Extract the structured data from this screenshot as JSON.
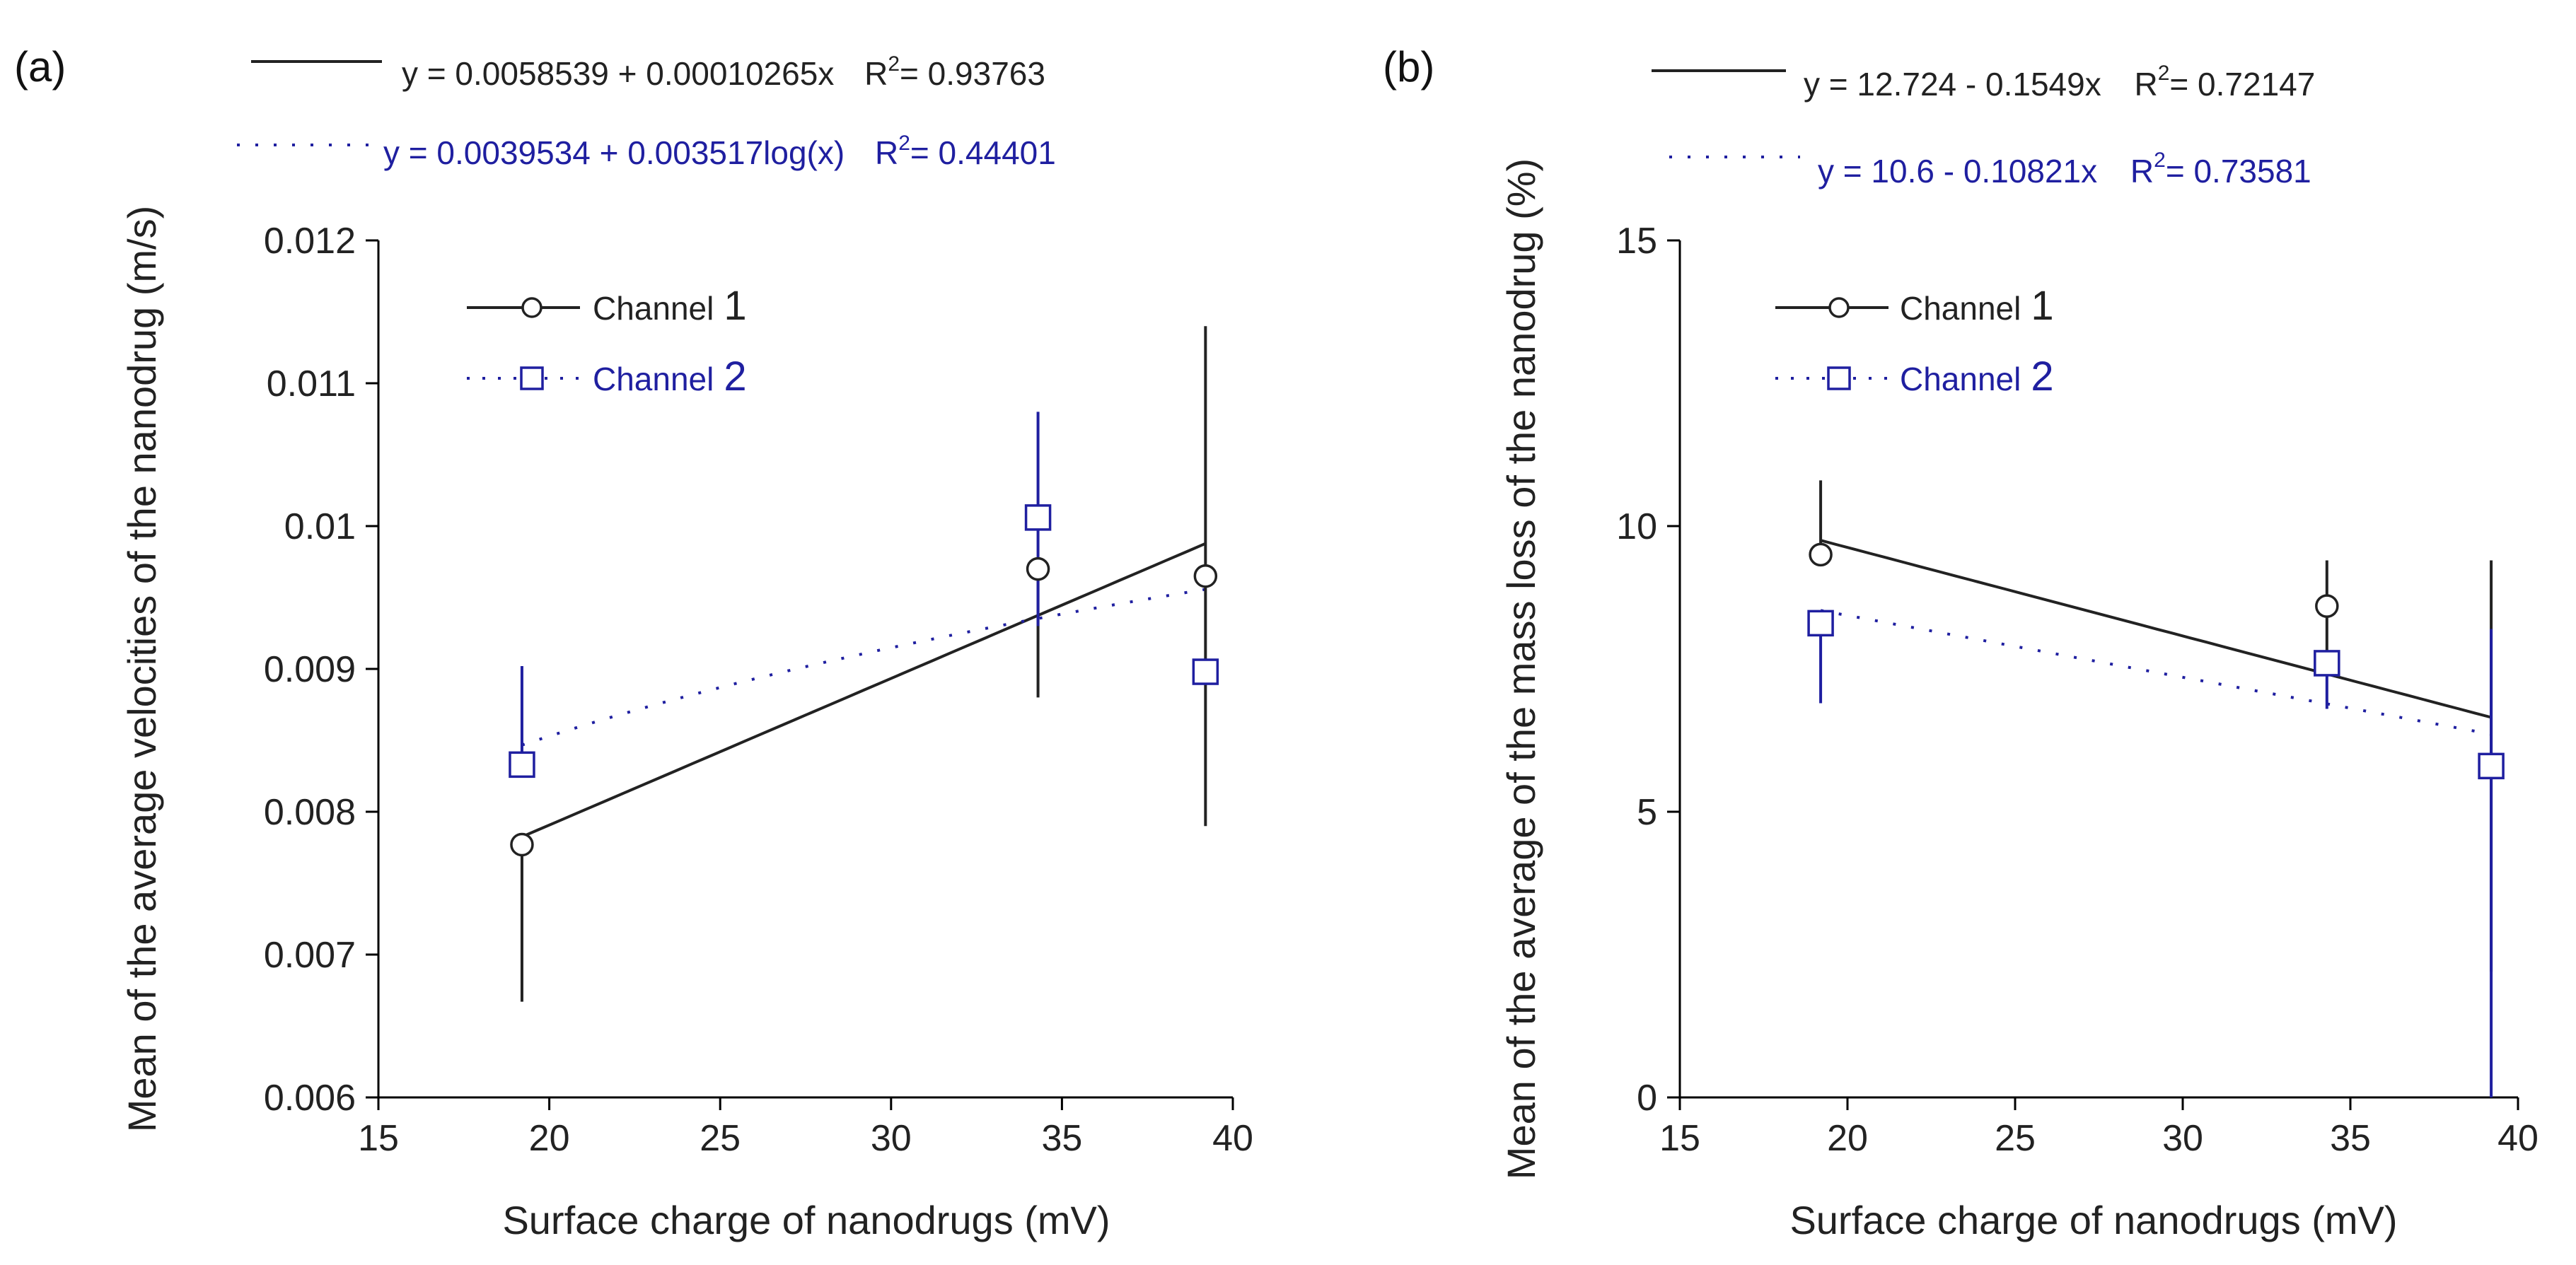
{
  "colors": {
    "channel1": "#222222",
    "channel2": "#1f1fa0"
  },
  "chart_data": [
    {
      "type": "scatter",
      "panel_label": "(a)",
      "xlabel": "Surface charge of nanodrugs (mV)",
      "ylabel": "Mean of the average velocities of the nanodrug (m/s)",
      "xlim": [
        15,
        40
      ],
      "ylim": [
        0.006,
        0.012
      ],
      "x_ticks": [
        15,
        20,
        25,
        30,
        35,
        40
      ],
      "y_ticks": [
        0.006,
        0.007,
        0.008,
        0.009,
        0.01,
        0.011,
        0.012
      ],
      "y_tick_labels": [
        "0.006",
        "0.007",
        "0.008",
        "0.009",
        "0.01",
        "0.011",
        "0.012"
      ],
      "grid": false,
      "legend_placement": "top-left",
      "series": [
        {
          "name": "Channel",
          "name_number": "1",
          "marker": "circle",
          "line": "solid",
          "x": [
            19.2,
            34.3,
            39.2
          ],
          "y": [
            0.00777,
            0.0097,
            0.00965
          ],
          "err_low": [
            0.00667,
            0.0088,
            0.0079
          ],
          "err_high": [
            0.00777,
            0.0097,
            0.0114
          ],
          "fit": {
            "type": "linear",
            "intercept": 0.0058539,
            "slope": 0.00010265,
            "equation": "y = 0.0058539 + 0.00010265x",
            "r2_prefix": "R",
            "r2_sup": "2",
            "r2_value": "= 0.93763"
          }
        },
        {
          "name": "Channel",
          "name_number": "2",
          "marker": "square",
          "line": "dotted",
          "x": [
            19.2,
            34.3,
            39.2
          ],
          "y": [
            0.00833,
            0.01006,
            0.00898
          ],
          "err_low": [
            0.00833,
            0.0093,
            0.00898
          ],
          "err_high": [
            0.00902,
            0.0108,
            0.00898
          ],
          "fit": {
            "type": "log",
            "intercept": 0.0039534,
            "coef": 0.003517,
            "equation": "y = 0.0039534 + 0.003517log(x)",
            "r2_prefix": "R",
            "r2_sup": "2",
            "r2_value": "= 0.44401"
          }
        }
      ]
    },
    {
      "type": "scatter",
      "panel_label": "(b)",
      "xlabel": "Surface charge of nanodrugs (mV)",
      "ylabel": "Mean of the average of the mass loss of the nanodrug (%)",
      "xlim": [
        15,
        40
      ],
      "ylim": [
        0,
        15
      ],
      "x_ticks": [
        15,
        20,
        25,
        30,
        35,
        40
      ],
      "y_ticks": [
        0,
        5,
        10,
        15
      ],
      "y_tick_labels": [
        "0",
        "5",
        "10",
        "15"
      ],
      "grid": false,
      "legend_placement": "top-left",
      "series": [
        {
          "name": "Channel",
          "name_number": "1",
          "marker": "circle",
          "line": "solid",
          "x": [
            19.2,
            34.3,
            39.2
          ],
          "y": [
            9.5,
            8.6,
            5.8
          ],
          "err_low": [
            9.5,
            7.5,
            2.2
          ],
          "err_high": [
            10.8,
            9.4,
            9.4
          ],
          "fit": {
            "type": "linear",
            "intercept": 12.724,
            "slope": -0.1549,
            "equation": "y = 12.724 - 0.1549x",
            "r2_prefix": "R",
            "r2_sup": "2",
            "r2_value": "= 0.72147"
          }
        },
        {
          "name": "Channel",
          "name_number": "2",
          "marker": "square",
          "line": "dotted",
          "x": [
            19.2,
            34.3,
            39.2
          ],
          "y": [
            8.3,
            7.6,
            5.8
          ],
          "err_low": [
            6.9,
            6.8,
            0
          ],
          "err_high": [
            8.3,
            7.6,
            8.2
          ],
          "fit": {
            "type": "linear",
            "intercept": 10.6,
            "slope": -0.10821,
            "equation": "y = 10.6 - 0.10821x",
            "r2_prefix": "R",
            "r2_sup": "2",
            "r2_value": "= 0.73581"
          }
        }
      ]
    }
  ]
}
